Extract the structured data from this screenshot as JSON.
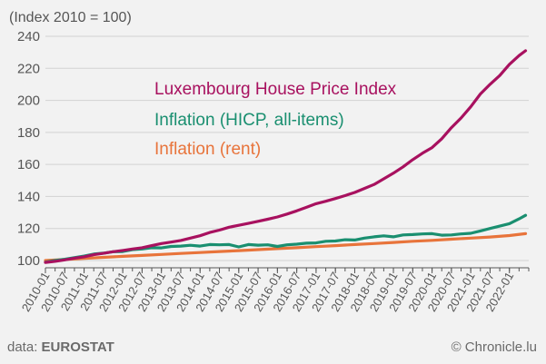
{
  "chart_data": {
    "type": "line",
    "ylabel": "(Index 2010 = 100)",
    "ylim": [
      95,
      240
    ],
    "yticks": [
      100,
      120,
      140,
      160,
      180,
      200,
      220,
      240
    ],
    "grid": true,
    "xticks": [
      "2010-01",
      "2010-07",
      "2011-01",
      "2011-07",
      "2012-01",
      "2012-07",
      "2013-01",
      "2013-07",
      "2014-01",
      "2014-07",
      "2015-01",
      "2015-07",
      "2016-01",
      "2016-07",
      "2017-01",
      "2017-07",
      "2018-01",
      "2018-07",
      "2019-01",
      "2019-07",
      "2020-01",
      "2020-07",
      "2021-01",
      "2021-07",
      "2022-01"
    ],
    "x_range": [
      "2010-01",
      "2022-07"
    ],
    "series": [
      {
        "name": "Luxembourg House Price Index",
        "color": "#a8115f",
        "points": [
          [
            "2010-01",
            98.8
          ],
          [
            "2010-04",
            99.5
          ],
          [
            "2010-07",
            100.4
          ],
          [
            "2010-10",
            101.5
          ],
          [
            "2011-01",
            102.3
          ],
          [
            "2011-04",
            103.6
          ],
          [
            "2011-07",
            104.5
          ],
          [
            "2011-10",
            105.5
          ],
          [
            "2012-01",
            106.3
          ],
          [
            "2012-04",
            107.2
          ],
          [
            "2012-07",
            108.0
          ],
          [
            "2012-10",
            109.3
          ],
          [
            "2013-01",
            110.6
          ],
          [
            "2013-04",
            111.5
          ],
          [
            "2013-07",
            112.5
          ],
          [
            "2013-10",
            114.0
          ],
          [
            "2014-01",
            115.5
          ],
          [
            "2014-04",
            117.5
          ],
          [
            "2014-07",
            119.0
          ],
          [
            "2014-10",
            120.8
          ],
          [
            "2015-01",
            122.0
          ],
          [
            "2015-04",
            123.2
          ],
          [
            "2015-07",
            124.5
          ],
          [
            "2015-10",
            125.8
          ],
          [
            "2016-01",
            127.2
          ],
          [
            "2016-04",
            129.0
          ],
          [
            "2016-07",
            131.0
          ],
          [
            "2016-10",
            133.2
          ],
          [
            "2017-01",
            135.5
          ],
          [
            "2017-04",
            137.0
          ],
          [
            "2017-07",
            138.7
          ],
          [
            "2017-10",
            140.5
          ],
          [
            "2018-01",
            142.5
          ],
          [
            "2018-04",
            145.0
          ],
          [
            "2018-07",
            147.5
          ],
          [
            "2018-10",
            151.0
          ],
          [
            "2019-01",
            154.5
          ],
          [
            "2019-04",
            158.5
          ],
          [
            "2019-07",
            163.0
          ],
          [
            "2019-10",
            167.0
          ],
          [
            "2020-01",
            170.5
          ],
          [
            "2020-04",
            176.0
          ],
          [
            "2020-07",
            183.0
          ],
          [
            "2020-10",
            189.0
          ],
          [
            "2021-01",
            196.0
          ],
          [
            "2021-04",
            204.0
          ],
          [
            "2021-07",
            210.0
          ],
          [
            "2021-10",
            215.5
          ],
          [
            "2022-01",
            222.5
          ],
          [
            "2022-04",
            228.0
          ],
          [
            "2022-06",
            231.0
          ]
        ]
      },
      {
        "name": "Inflation (HICP, all-items)",
        "color": "#1a8f70",
        "points": [
          [
            "2010-01",
            99.0
          ],
          [
            "2010-04",
            100.0
          ],
          [
            "2010-07",
            100.8
          ],
          [
            "2010-10",
            101.8
          ],
          [
            "2011-01",
            102.8
          ],
          [
            "2011-04",
            104.0
          ],
          [
            "2011-07",
            104.6
          ],
          [
            "2011-10",
            105.5
          ],
          [
            "2012-01",
            105.6
          ],
          [
            "2012-04",
            106.8
          ],
          [
            "2012-07",
            107.2
          ],
          [
            "2012-10",
            108.0
          ],
          [
            "2013-01",
            107.9
          ],
          [
            "2013-04",
            108.8
          ],
          [
            "2013-07",
            109.0
          ],
          [
            "2013-10",
            109.5
          ],
          [
            "2014-01",
            109.0
          ],
          [
            "2014-04",
            110.0
          ],
          [
            "2014-07",
            109.8
          ],
          [
            "2014-10",
            110.0
          ],
          [
            "2015-01",
            108.5
          ],
          [
            "2015-04",
            110.0
          ],
          [
            "2015-07",
            109.6
          ],
          [
            "2015-10",
            109.8
          ],
          [
            "2016-01",
            108.8
          ],
          [
            "2016-04",
            109.8
          ],
          [
            "2016-07",
            110.2
          ],
          [
            "2016-10",
            110.8
          ],
          [
            "2017-01",
            111.0
          ],
          [
            "2017-04",
            112.0
          ],
          [
            "2017-07",
            112.2
          ],
          [
            "2017-10",
            113.0
          ],
          [
            "2018-01",
            112.8
          ],
          [
            "2018-04",
            114.0
          ],
          [
            "2018-07",
            114.8
          ],
          [
            "2018-10",
            115.4
          ],
          [
            "2019-01",
            114.8
          ],
          [
            "2019-04",
            116.0
          ],
          [
            "2019-07",
            116.2
          ],
          [
            "2019-10",
            116.6
          ],
          [
            "2020-01",
            116.8
          ],
          [
            "2020-04",
            115.8
          ],
          [
            "2020-07",
            116.0
          ],
          [
            "2020-10",
            116.6
          ],
          [
            "2021-01",
            117.0
          ],
          [
            "2021-04",
            118.5
          ],
          [
            "2021-07",
            120.0
          ],
          [
            "2021-10",
            121.5
          ],
          [
            "2022-01",
            123.0
          ],
          [
            "2022-04",
            126.0
          ],
          [
            "2022-06",
            128.2
          ]
        ]
      },
      {
        "name": "Inflation (rent)",
        "color": "#e8743b",
        "points": [
          [
            "2010-01",
            100.0
          ],
          [
            "2010-07",
            100.6
          ],
          [
            "2011-01",
            101.3
          ],
          [
            "2011-07",
            102.0
          ],
          [
            "2012-01",
            102.6
          ],
          [
            "2012-07",
            103.2
          ],
          [
            "2013-01",
            103.8
          ],
          [
            "2013-07",
            104.4
          ],
          [
            "2014-01",
            105.0
          ],
          [
            "2014-07",
            105.6
          ],
          [
            "2015-01",
            106.2
          ],
          [
            "2015-07",
            106.8
          ],
          [
            "2016-01",
            107.4
          ],
          [
            "2016-07",
            108.0
          ],
          [
            "2017-01",
            108.7
          ],
          [
            "2017-07",
            109.3
          ],
          [
            "2018-01",
            110.0
          ],
          [
            "2018-07",
            110.6
          ],
          [
            "2019-01",
            111.3
          ],
          [
            "2019-07",
            112.0
          ],
          [
            "2020-01",
            112.6
          ],
          [
            "2020-07",
            113.3
          ],
          [
            "2021-01",
            114.0
          ],
          [
            "2021-07",
            114.7
          ],
          [
            "2022-01",
            115.6
          ],
          [
            "2022-06",
            116.8
          ]
        ]
      }
    ]
  },
  "footer": {
    "source_prefix": "data: ",
    "source_name": "EUROSTAT",
    "credit": "© Chronicle.lu"
  }
}
